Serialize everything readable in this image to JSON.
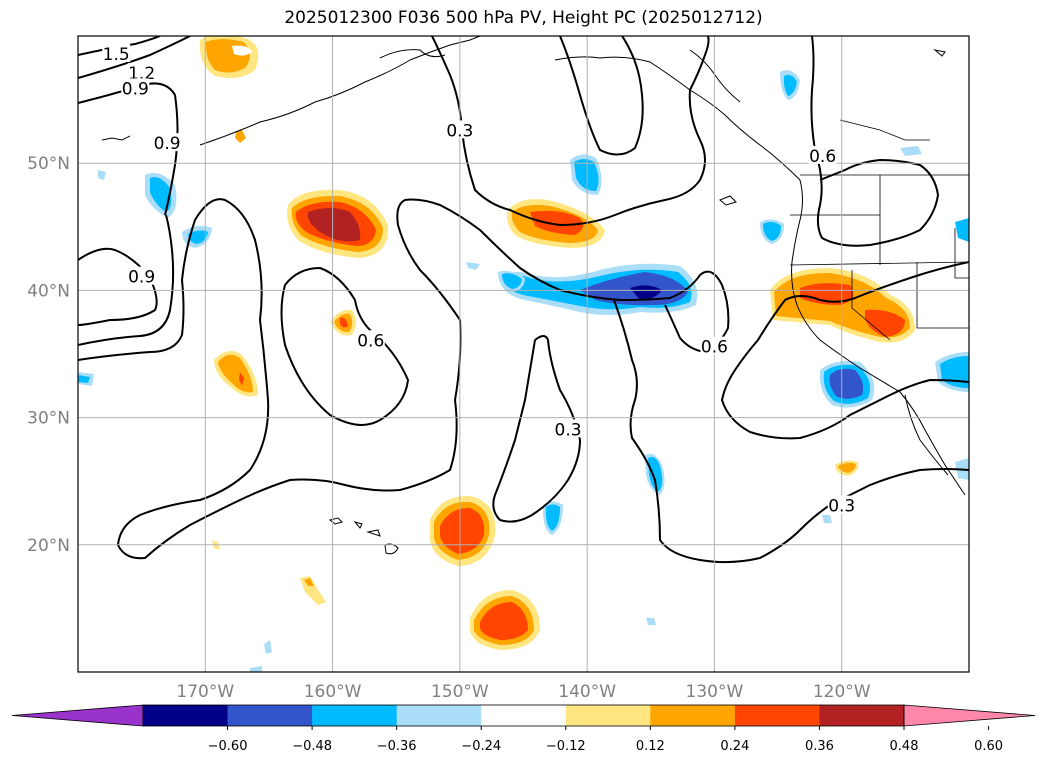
{
  "title": "2025012300 F036 500 hPa PV, Height PC (2025012712)",
  "map": {
    "lon_range": [
      -180,
      -110
    ],
    "lat_range": [
      10,
      60
    ],
    "lat_ticks": [
      {
        "value": 50,
        "label": "50°N"
      },
      {
        "value": 40,
        "label": "40°N"
      },
      {
        "value": 30,
        "label": "30°N"
      },
      {
        "value": 20,
        "label": "20°N"
      }
    ],
    "lon_ticks": [
      {
        "value": -170,
        "label": "170°W"
      },
      {
        "value": -160,
        "label": "160°W"
      },
      {
        "value": -150,
        "label": "150°W"
      },
      {
        "value": -140,
        "label": "140°W"
      },
      {
        "value": -130,
        "label": "130°W"
      },
      {
        "value": -120,
        "label": "120°W"
      }
    ],
    "grid": true
  },
  "contour_labels": [
    {
      "text": "1.5",
      "lon": -177,
      "lat": 58.5
    },
    {
      "text": "1.2",
      "lon": -175,
      "lat": 57.0
    },
    {
      "text": "0.9",
      "lon": -175.5,
      "lat": 55.8
    },
    {
      "text": "0.9",
      "lon": -173,
      "lat": 51.5
    },
    {
      "text": "0.9",
      "lon": -175,
      "lat": 41.0
    },
    {
      "text": "0.3",
      "lon": -150,
      "lat": 52.5
    },
    {
      "text": "0.6",
      "lon": -157,
      "lat": 36.0
    },
    {
      "text": "0.3",
      "lon": -141.5,
      "lat": 29.0
    },
    {
      "text": "0.6",
      "lon": -130,
      "lat": 35.5
    },
    {
      "text": "0.6",
      "lon": -121.5,
      "lat": 50.5
    },
    {
      "text": "0.3",
      "lon": -120,
      "lat": 23.0
    }
  ],
  "colorbar": {
    "ticks": [
      "−0.60",
      "−0.48",
      "−0.36",
      "−0.24",
      "−0.12",
      "0.12",
      "0.24",
      "0.36",
      "0.48",
      "0.60"
    ],
    "colors": [
      "#9933cc",
      "#000088",
      "#3355cc",
      "#00bbff",
      "#aaddf7",
      "#ffffff",
      "#ffe680",
      "#ffa500",
      "#ff4500",
      "#b22222",
      "#ff88aa"
    ]
  }
}
